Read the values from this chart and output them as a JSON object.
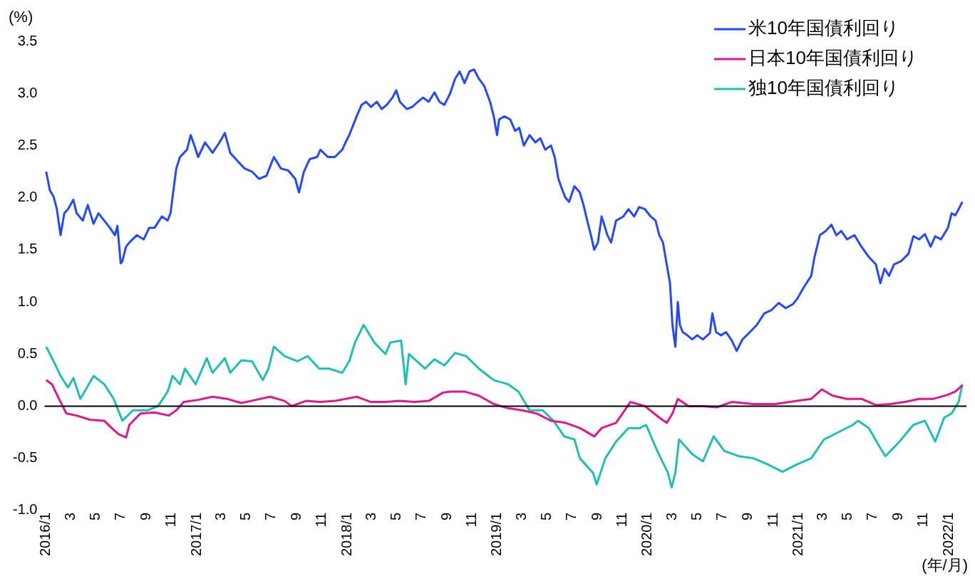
{
  "chart_data": {
    "type": "line",
    "ylabel": "(%)",
    "xlabel": "(年/月)",
    "xlim": [
      "2015-12-28",
      "2022-02-13"
    ],
    "ylim": [
      -1.0,
      3.5
    ],
    "yticks": [
      {
        "value": -1,
        "label": "-1.0"
      },
      -0.5,
      {
        "value": 0,
        "label": "0.0"
      },
      0.5,
      {
        "value": 1,
        "label": "1.0"
      },
      1.5,
      {
        "value": 2,
        "label": "2.0"
      },
      2.5,
      {
        "value": 3,
        "label": "3.0"
      },
      3.5
    ],
    "xticks": [
      {
        "value": "2016-01",
        "label": "2016/1"
      },
      {
        "value": "2016-03",
        "label": "3"
      },
      {
        "value": "2016-05",
        "label": "5"
      },
      {
        "value": "2016-07",
        "label": "7"
      },
      {
        "value": "2016-09",
        "label": "9"
      },
      {
        "value": "2016-11",
        "label": "11"
      },
      {
        "value": "2017-01",
        "label": "2017/1"
      },
      {
        "value": "2017-03",
        "label": "3"
      },
      {
        "value": "2017-05",
        "label": "5"
      },
      {
        "value": "2017-07",
        "label": "7"
      },
      {
        "value": "2017-09",
        "label": "9"
      },
      {
        "value": "2017-11",
        "label": "11"
      },
      {
        "value": "2018-01",
        "label": "2018/1"
      },
      {
        "value": "2018-03",
        "label": "3"
      },
      {
        "value": "2018-05",
        "label": "5"
      },
      {
        "value": "2018-07",
        "label": "7"
      },
      {
        "value": "2018-09",
        "label": "9"
      },
      {
        "value": "2018-11",
        "label": "11"
      },
      {
        "value": "2019-01",
        "label": "2019/1"
      },
      {
        "value": "2019-03",
        "label": "3"
      },
      {
        "value": "2019-05",
        "label": "5"
      },
      {
        "value": "2019-07",
        "label": "7"
      },
      {
        "value": "2019-09",
        "label": "9"
      },
      {
        "value": "2019-11",
        "label": "11"
      },
      {
        "value": "2020-01",
        "label": "2020/1"
      },
      {
        "value": "2020-03",
        "label": "3"
      },
      {
        "value": "2020-05",
        "label": "5"
      },
      {
        "value": "2020-07",
        "label": "7"
      },
      {
        "value": "2020-09",
        "label": "9"
      },
      {
        "value": "2020-11",
        "label": "11"
      },
      {
        "value": "2021-01",
        "label": "2021/1"
      },
      {
        "value": "2021-03",
        "label": "3"
      },
      {
        "value": "2021-05",
        "label": "5"
      },
      {
        "value": "2021-07",
        "label": "7"
      },
      {
        "value": "2021-09",
        "label": "9"
      },
      {
        "value": "2021-11",
        "label": "11"
      },
      {
        "value": "2022-01",
        "label": "2022/1"
      }
    ],
    "grid": false,
    "legend": "top right",
    "marker": "none",
    "line_style": "solid",
    "ref_lines": [
      {
        "axis": "y",
        "value": 0,
        "color": "#000000"
      }
    ],
    "series": [
      {
        "name": "米10年国債利回り",
        "color": "#2448ff",
        "x": [
          "2016-01-01",
          "2016-01-10",
          "2016-01-19",
          "2016-01-27",
          "2016-02-05",
          "2016-02-14",
          "2016-02-23",
          "2016-03-07",
          "2016-03-15",
          "2016-03-30",
          "2016-04-11",
          "2016-04-25",
          "2016-05-07",
          "2016-05-21",
          "2016-06-04",
          "2016-06-16",
          "2016-06-22",
          "2016-06-30",
          "2016-07-04",
          "2016-07-13",
          "2016-07-21",
          "2016-08-08",
          "2016-08-25",
          "2016-09-07",
          "2016-09-20",
          "2016-10-08",
          "2016-10-22",
          "2016-10-29",
          "2016-11-05",
          "2016-11-12",
          "2016-11-21",
          "2016-12-08",
          "2016-12-17",
          "2016-12-26",
          "2017-01-04",
          "2017-01-21",
          "2017-02-08",
          "2017-02-25",
          "2017-03-10",
          "2017-03-23",
          "2017-04-10",
          "2017-04-27",
          "2017-05-15",
          "2017-06-01",
          "2017-06-19",
          "2017-07-07",
          "2017-07-24",
          "2017-08-11",
          "2017-08-28",
          "2017-09-06",
          "2017-09-18",
          "2017-10-02",
          "2017-10-20",
          "2017-10-28",
          "2017-11-15",
          "2017-12-02",
          "2017-12-20",
          "2017-12-28",
          "2018-01-06",
          "2018-01-24",
          "2018-02-05",
          "2018-02-16",
          "2018-02-28",
          "2018-03-14",
          "2018-03-26",
          "2018-04-07",
          "2018-04-21",
          "2018-04-30",
          "2018-05-09",
          "2018-05-26",
          "2018-06-08",
          "2018-06-22",
          "2018-07-04",
          "2018-07-18",
          "2018-08-01",
          "2018-08-13",
          "2018-08-25",
          "2018-09-08",
          "2018-09-20",
          "2018-10-01",
          "2018-10-13",
          "2018-10-25",
          "2018-11-05",
          "2018-11-17",
          "2018-11-30",
          "2018-12-14",
          "2018-12-23",
          "2018-12-31",
          "2019-01-05",
          "2019-01-18",
          "2019-02-01",
          "2019-02-13",
          "2019-02-23",
          "2019-03-06",
          "2019-03-20",
          "2019-04-03",
          "2019-04-15",
          "2019-04-27",
          "2019-05-11",
          "2019-05-20",
          "2019-05-29",
          "2019-06-07",
          "2019-06-15",
          "2019-06-24",
          "2019-07-07",
          "2019-07-20",
          "2019-07-29",
          "2019-08-07",
          "2019-08-16",
          "2019-08-24",
          "2019-09-02",
          "2019-09-11",
          "2019-09-25",
          "2019-10-04",
          "2019-10-16",
          "2019-11-03",
          "2019-11-15",
          "2019-11-29",
          "2019-12-11",
          "2019-12-25",
          "2020-01-08",
          "2020-01-20",
          "2020-01-29",
          "2020-02-07",
          "2020-02-16",
          "2020-02-24",
          "2020-03-01",
          "2020-03-08",
          "2020-03-14",
          "2020-03-19",
          "2020-03-26",
          "2020-04-06",
          "2020-04-18",
          "2020-04-30",
          "2020-05-14",
          "2020-05-31",
          "2020-06-06",
          "2020-06-15",
          "2020-06-27",
          "2020-07-09",
          "2020-07-23",
          "2020-08-04",
          "2020-08-18",
          "2020-09-05",
          "2020-09-22",
          "2020-10-10",
          "2020-10-27",
          "2020-11-14",
          "2020-12-01",
          "2020-12-19",
          "2020-12-29",
          "2021-01-14",
          "2021-02-01",
          "2021-02-09",
          "2021-02-22",
          "2021-03-08",
          "2021-03-22",
          "2021-04-03",
          "2021-04-15",
          "2021-04-29",
          "2021-05-17",
          "2021-06-03",
          "2021-06-21",
          "2021-07-08",
          "2021-07-19",
          "2021-07-29",
          "2021-08-09",
          "2021-08-21",
          "2021-09-07",
          "2021-09-25",
          "2021-10-07",
          "2021-10-21",
          "2021-11-04",
          "2021-11-18",
          "2021-11-29",
          "2021-12-13",
          "2021-12-30",
          "2022-01-08",
          "2022-01-17",
          "2022-01-25",
          "2022-02-03"
        ],
        "values": [
          2.25,
          2.07,
          2.01,
          1.89,
          1.64,
          1.85,
          1.89,
          1.98,
          1.85,
          1.78,
          1.93,
          1.75,
          1.85,
          1.78,
          1.71,
          1.64,
          1.73,
          1.37,
          1.39,
          1.53,
          1.57,
          1.64,
          1.6,
          1.71,
          1.71,
          1.82,
          1.78,
          1.85,
          2.07,
          2.28,
          2.39,
          2.46,
          2.6,
          2.5,
          2.39,
          2.53,
          2.43,
          2.53,
          2.62,
          2.43,
          2.35,
          2.28,
          2.25,
          2.18,
          2.21,
          2.39,
          2.28,
          2.26,
          2.18,
          2.05,
          2.25,
          2.37,
          2.39,
          2.46,
          2.39,
          2.39,
          2.46,
          2.53,
          2.6,
          2.78,
          2.89,
          2.92,
          2.87,
          2.92,
          2.85,
          2.89,
          2.96,
          3.03,
          2.92,
          2.85,
          2.87,
          2.92,
          2.96,
          2.92,
          3.01,
          2.92,
          2.89,
          3.0,
          3.14,
          3.21,
          3.1,
          3.21,
          3.23,
          3.14,
          3.07,
          2.92,
          2.78,
          2.6,
          2.75,
          2.78,
          2.75,
          2.64,
          2.67,
          2.5,
          2.6,
          2.53,
          2.57,
          2.46,
          2.5,
          2.39,
          2.18,
          2.08,
          2.0,
          1.96,
          2.11,
          2.05,
          1.93,
          1.78,
          1.64,
          1.5,
          1.57,
          1.82,
          1.64,
          1.57,
          1.78,
          1.82,
          1.89,
          1.82,
          1.91,
          1.89,
          1.82,
          1.78,
          1.64,
          1.57,
          1.36,
          1.18,
          0.78,
          0.57,
          1.0,
          0.78,
          0.71,
          0.68,
          0.64,
          0.68,
          0.64,
          0.7,
          0.89,
          0.71,
          0.68,
          0.71,
          0.63,
          0.53,
          0.64,
          0.71,
          0.78,
          0.89,
          0.92,
          0.99,
          0.94,
          0.98,
          1.03,
          1.14,
          1.25,
          1.43,
          1.64,
          1.68,
          1.74,
          1.64,
          1.68,
          1.6,
          1.64,
          1.53,
          1.43,
          1.36,
          1.18,
          1.32,
          1.25,
          1.36,
          1.39,
          1.46,
          1.63,
          1.6,
          1.65,
          1.53,
          1.63,
          1.6,
          1.71,
          1.85,
          1.83,
          1.89,
          1.96
        ]
      },
      {
        "name": "日本10年国債利回り",
        "color": "#e2168e",
        "x": [
          "2016-01-01",
          "2016-01-15",
          "2016-02-01",
          "2016-02-19",
          "2016-03-15",
          "2016-04-16",
          "2016-05-21",
          "2016-06-08",
          "2016-06-25",
          "2016-07-13",
          "2016-07-21",
          "2016-08-17",
          "2016-09-20",
          "2016-10-25",
          "2016-11-12",
          "2016-11-30",
          "2017-01-04",
          "2017-02-08",
          "2017-03-15",
          "2017-04-19",
          "2017-05-24",
          "2017-06-28",
          "2017-08-02",
          "2017-08-19",
          "2017-09-23",
          "2017-10-28",
          "2017-12-02",
          "2018-01-24",
          "2018-02-28",
          "2018-04-04",
          "2018-05-09",
          "2018-06-13",
          "2018-07-18",
          "2018-08-22",
          "2018-09-08",
          "2018-10-13",
          "2018-11-17",
          "2018-12-23",
          "2019-01-27",
          "2019-03-02",
          "2019-04-06",
          "2019-05-11",
          "2019-06-15",
          "2019-07-20",
          "2019-08-24",
          "2019-09-11",
          "2019-10-16",
          "2019-11-20",
          "2019-12-25",
          "2020-01-29",
          "2020-02-16",
          "2020-03-01",
          "2020-03-14",
          "2020-04-09",
          "2020-05-14",
          "2020-06-18",
          "2020-07-23",
          "2020-09-14",
          "2020-11-05",
          "2020-12-28",
          "2021-02-01",
          "2021-02-27",
          "2021-03-25",
          "2021-04-29",
          "2021-06-03",
          "2021-07-08",
          "2021-08-12",
          "2021-09-16",
          "2021-10-21",
          "2021-11-25",
          "2021-12-30",
          "2022-01-17",
          "2022-02-03"
        ],
        "values": [
          0.25,
          0.21,
          0.07,
          -0.07,
          -0.09,
          -0.13,
          -0.14,
          -0.21,
          -0.27,
          -0.3,
          -0.18,
          -0.07,
          -0.06,
          -0.09,
          -0.04,
          0.04,
          0.06,
          0.09,
          0.07,
          0.03,
          0.06,
          0.09,
          0.05,
          0.0,
          0.05,
          0.04,
          0.05,
          0.09,
          0.04,
          0.04,
          0.05,
          0.04,
          0.05,
          0.13,
          0.14,
          0.14,
          0.1,
          0.02,
          -0.02,
          -0.04,
          -0.07,
          -0.14,
          -0.16,
          -0.21,
          -0.29,
          -0.21,
          -0.16,
          0.04,
          0.0,
          -0.11,
          -0.16,
          -0.07,
          0.07,
          0.0,
          0.0,
          -0.01,
          0.04,
          0.02,
          0.02,
          0.05,
          0.07,
          0.16,
          0.1,
          0.07,
          0.07,
          0.01,
          0.02,
          0.04,
          0.07,
          0.07,
          0.11,
          0.14,
          0.2
        ]
      },
      {
        "name": "独10年国債利回り",
        "color": "#1ebfb6",
        "x": [
          "2016-01-01",
          "2016-01-19",
          "2016-02-05",
          "2016-02-23",
          "2016-03-07",
          "2016-03-24",
          "2016-04-25",
          "2016-05-21",
          "2016-06-13",
          "2016-07-04",
          "2016-07-30",
          "2016-09-03",
          "2016-09-29",
          "2016-10-22",
          "2016-11-03",
          "2016-11-21",
          "2016-12-03",
          "2016-12-29",
          "2017-01-25",
          "2017-02-08",
          "2017-03-10",
          "2017-03-23",
          "2017-04-19",
          "2017-05-15",
          "2017-06-10",
          "2017-06-24",
          "2017-07-07",
          "2017-08-02",
          "2017-09-02",
          "2017-09-27",
          "2017-10-25",
          "2017-11-18",
          "2017-12-20",
          "2018-01-06",
          "2018-01-20",
          "2018-02-10",
          "2018-03-08",
          "2018-04-04",
          "2018-04-16",
          "2018-05-12",
          "2018-05-23",
          "2018-05-31",
          "2018-07-09",
          "2018-08-01",
          "2018-08-25",
          "2018-09-20",
          "2018-10-17",
          "2018-11-17",
          "2018-12-23",
          "2019-01-27",
          "2019-02-21",
          "2019-03-20",
          "2019-04-21",
          "2019-05-17",
          "2019-06-12",
          "2019-07-07",
          "2019-07-20",
          "2019-08-21",
          "2019-08-30",
          "2019-09-20",
          "2019-10-16",
          "2019-11-15",
          "2019-12-13",
          "2019-12-28",
          "2020-01-24",
          "2020-02-19",
          "2020-02-28",
          "2020-03-08",
          "2020-03-17",
          "2020-04-18",
          "2020-05-14",
          "2020-06-09",
          "2020-07-05",
          "2020-08-09",
          "2020-09-14",
          "2020-10-19",
          "2020-11-23",
          "2020-12-28",
          "2021-02-01",
          "2021-03-04",
          "2021-04-08",
          "2021-05-13",
          "2021-05-26",
          "2021-06-21",
          "2021-07-17",
          "2021-07-31",
          "2021-08-30",
          "2021-10-07",
          "2021-11-04",
          "2021-11-29",
          "2021-12-21",
          "2022-01-08",
          "2022-01-25",
          "2022-02-03"
        ],
        "values": [
          0.57,
          0.43,
          0.29,
          0.18,
          0.27,
          0.07,
          0.29,
          0.21,
          0.07,
          -0.14,
          -0.04,
          -0.04,
          0.0,
          0.14,
          0.29,
          0.21,
          0.36,
          0.21,
          0.46,
          0.32,
          0.46,
          0.32,
          0.44,
          0.43,
          0.25,
          0.36,
          0.57,
          0.48,
          0.43,
          0.48,
          0.36,
          0.36,
          0.32,
          0.43,
          0.61,
          0.78,
          0.61,
          0.5,
          0.61,
          0.63,
          0.21,
          0.5,
          0.36,
          0.45,
          0.39,
          0.51,
          0.48,
          0.36,
          0.25,
          0.21,
          0.14,
          -0.04,
          -0.04,
          -0.14,
          -0.29,
          -0.32,
          -0.5,
          -0.64,
          -0.75,
          -0.5,
          -0.34,
          -0.21,
          -0.21,
          -0.18,
          -0.43,
          -0.64,
          -0.78,
          -0.64,
          -0.32,
          -0.46,
          -0.53,
          -0.29,
          -0.43,
          -0.48,
          -0.5,
          -0.56,
          -0.63,
          -0.56,
          -0.5,
          -0.32,
          -0.25,
          -0.18,
          -0.14,
          -0.21,
          -0.39,
          -0.48,
          -0.36,
          -0.18,
          -0.14,
          -0.34,
          -0.11,
          -0.07,
          0.04,
          0.21
        ]
      }
    ]
  }
}
